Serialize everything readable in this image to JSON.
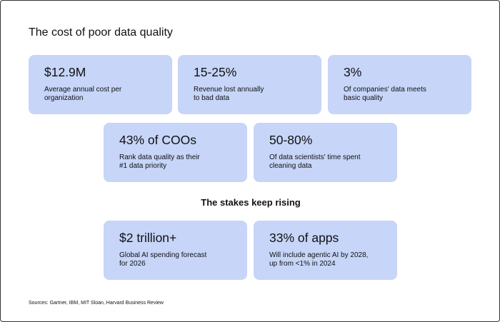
{
  "header": {
    "title": "The cost of poor data quality"
  },
  "cards": [
    {
      "stat": "$12.9M",
      "lines": [
        "Average annual cost per",
        "organization"
      ]
    },
    {
      "stat": "15-25%",
      "lines": [
        "Revenue lost annually",
        "to bad data"
      ]
    },
    {
      "stat": "3%",
      "lines": [
        "Of companies' data meets",
        "basic quality"
      ]
    },
    {
      "stat": "43% of COOs",
      "lines": [
        "Rank data quality as their",
        "#1 data priority"
      ]
    },
    {
      "stat": "50-80%",
      "lines": [
        "Of data scientists' time spent",
        "cleaning data"
      ]
    }
  ],
  "section": {
    "title": "The stakes keep rising",
    "cards": [
      {
        "stat": "$2 trillion+",
        "lines": [
          "Global AI spending forecast",
          "for 2026"
        ]
      },
      {
        "stat": "33% of apps",
        "lines": [
          "Will include agentic AI by 2028,",
          "up from <1% in 2024"
        ]
      }
    ]
  },
  "footer": {
    "sources": "Sources: Gartner, IBM, MIT Sloan, Harvard Business Review"
  }
}
